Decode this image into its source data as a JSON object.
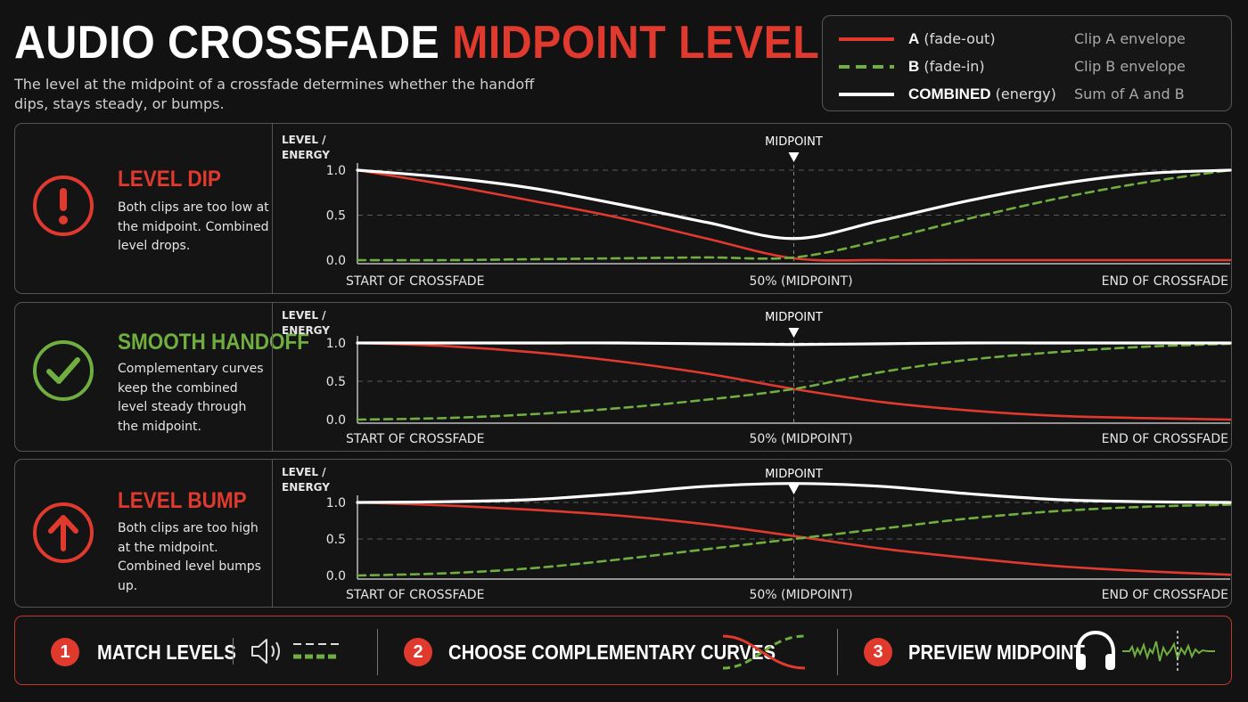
{
  "header": {
    "title_part1": "AUDIO CROSSFADE",
    "title_part2": "MIDPOINT LEVEL",
    "subtitle": "The level at the midpoint of a crossfade determines whether the handoff dips, stays steady, or bumps."
  },
  "legend": [
    {
      "key": "A",
      "rest": "(fade-out)",
      "desc": "Clip A envelope",
      "color": "#e03a2f",
      "style": "solid"
    },
    {
      "key": "B",
      "rest": "(fade-in)",
      "desc": "Clip B envelope",
      "color": "#6fae3f",
      "style": "dashed"
    },
    {
      "key": "COMBINED",
      "rest": "(energy)",
      "desc": "Sum of A and B",
      "color": "#ffffff",
      "style": "solid"
    }
  ],
  "colors": {
    "red": "#e03a2f",
    "green": "#6fae3f",
    "white": "#ffffff"
  },
  "panels": [
    {
      "title": "LEVEL DIP",
      "title_color": "#e03a2f",
      "icon": "exclamation-icon",
      "icon_color": "#e03a2f",
      "desc": "Both clips are too low at the midpoint. Combined level drops."
    },
    {
      "title": "SMOOTH HANDOFF",
      "title_color": "#6fae3f",
      "icon": "check-icon",
      "icon_color": "#6fae3f",
      "desc": "Complementary curves keep the combined level steady through the midpoint."
    },
    {
      "title": "LEVEL BUMP",
      "title_color": "#e03a2f",
      "icon": "arrow-up-icon",
      "icon_color": "#e03a2f",
      "desc": "Both clips are too high at the midpoint. Combined level bumps up."
    }
  ],
  "chart_data": [
    {
      "type": "line",
      "ylabel": "LEVEL / ENERGY",
      "midpoint_label": "MIDPOINT",
      "x_tick_labels": [
        "START OF CROSSFADE",
        "50% (MIDPOINT)",
        "END OF CROSSFADE"
      ],
      "y_ticks": [
        "1.0",
        "0.5",
        "0.0"
      ],
      "ylim": [
        0,
        1
      ],
      "xlim": [
        0,
        1
      ],
      "grid": true,
      "x": [
        0,
        0.1,
        0.2,
        0.3,
        0.4,
        0.5,
        0.6,
        0.7,
        0.8,
        0.9,
        1
      ],
      "series": [
        {
          "name": "A",
          "values": [
            1.0,
            0.84,
            0.66,
            0.47,
            0.24,
            0.02,
            0.0,
            0.0,
            0.0,
            0.0,
            0.0
          ]
        },
        {
          "name": "B",
          "values": [
            0.0,
            0.0,
            0.01,
            0.02,
            0.03,
            0.03,
            0.22,
            0.46,
            0.68,
            0.86,
            1.0
          ]
        },
        {
          "name": "COMBINED",
          "values": [
            1.0,
            0.92,
            0.8,
            0.62,
            0.42,
            0.24,
            0.44,
            0.66,
            0.84,
            0.96,
            1.0
          ]
        }
      ]
    },
    {
      "type": "line",
      "ylabel": "LEVEL / ENERGY",
      "midpoint_label": "MIDPOINT",
      "x_tick_labels": [
        "START OF CROSSFADE",
        "50% (MIDPOINT)",
        "END OF CROSSFADE"
      ],
      "y_ticks": [
        "1.0",
        "0.5",
        "0.0"
      ],
      "ylim": [
        0,
        1
      ],
      "xlim": [
        0,
        1
      ],
      "grid": true,
      "x": [
        0,
        0.1,
        0.2,
        0.3,
        0.4,
        0.5,
        0.6,
        0.7,
        0.8,
        0.9,
        1
      ],
      "series": [
        {
          "name": "A",
          "values": [
            1.0,
            0.96,
            0.88,
            0.76,
            0.6,
            0.4,
            0.23,
            0.12,
            0.05,
            0.02,
            0.0
          ]
        },
        {
          "name": "B",
          "values": [
            0.0,
            0.02,
            0.07,
            0.15,
            0.26,
            0.4,
            0.62,
            0.78,
            0.88,
            0.95,
            0.99
          ]
        },
        {
          "name": "COMBINED",
          "values": [
            1.0,
            1.0,
            1.0,
            1.0,
            0.99,
            0.98,
            0.99,
            1.0,
            1.0,
            1.0,
            1.0
          ]
        }
      ]
    },
    {
      "type": "line",
      "ylabel": "LEVEL / ENERGY",
      "midpoint_label": "MIDPOINT",
      "x_tick_labels": [
        "START OF CROSSFADE",
        "50% (MIDPOINT)",
        "END OF CROSSFADE"
      ],
      "y_ticks": [
        "1.0",
        "0.5",
        "0.0"
      ],
      "ylim": [
        0,
        1
      ],
      "xlim": [
        0,
        1
      ],
      "grid": true,
      "x": [
        0,
        0.1,
        0.2,
        0.3,
        0.4,
        0.5,
        0.6,
        0.7,
        0.8,
        0.9,
        1
      ],
      "series": [
        {
          "name": "A",
          "values": [
            1.0,
            0.96,
            0.9,
            0.82,
            0.7,
            0.54,
            0.37,
            0.24,
            0.13,
            0.06,
            0.01
          ]
        },
        {
          "name": "B",
          "values": [
            0.0,
            0.03,
            0.1,
            0.22,
            0.36,
            0.5,
            0.64,
            0.78,
            0.88,
            0.94,
            0.97
          ]
        },
        {
          "name": "COMBINED",
          "values": [
            1.0,
            1.01,
            1.04,
            1.12,
            1.22,
            1.26,
            1.22,
            1.12,
            1.04,
            1.01,
            1.0
          ]
        }
      ]
    }
  ],
  "steps": [
    {
      "number": "1",
      "label": "MATCH LEVELS",
      "icon": "speaker-icon"
    },
    {
      "number": "2",
      "label": "CHOOSE COMPLEMENTARY CURVES",
      "icon": "crossfade-curves-icon"
    },
    {
      "number": "3",
      "label": "PREVIEW MIDPOINT",
      "icon": "headphones-icon"
    }
  ]
}
